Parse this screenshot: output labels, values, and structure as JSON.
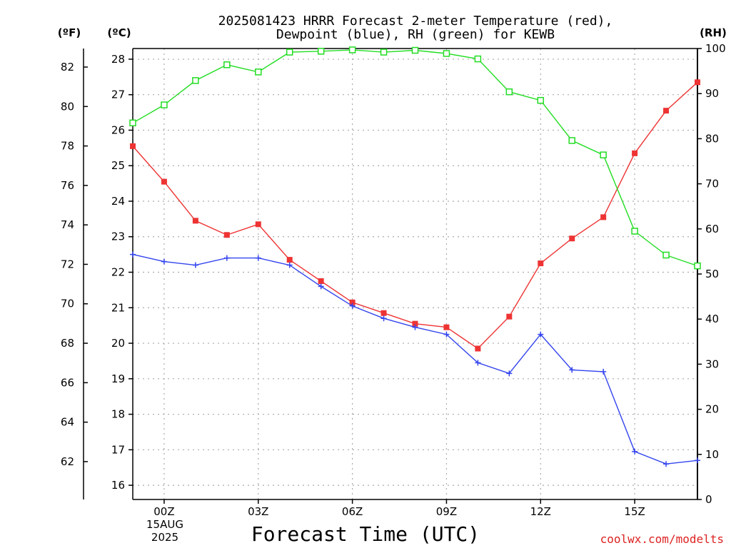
{
  "title_line1": "2025081423 HRRR Forecast 2-meter Temperature (red),",
  "title_line2": "Dewpoint (blue), RH (green) for KEWB",
  "xaxis_title": "Forecast Time (UTC)",
  "credit": "coolwx.com/modelts",
  "unit_f": "(ºF)",
  "unit_c": "(ºC)",
  "unit_rh": "(RH)",
  "date_label_line1": "15AUG",
  "date_label_line2": "2025",
  "colors": {
    "temperature": "#ee3333",
    "dewpoint": "#3344ee",
    "rh": "#22dd22",
    "credit": "#dd2222",
    "grid": "#aaaaaa"
  },
  "chart_data": {
    "type": "line",
    "x_ticks": [
      "00Z",
      "03Z",
      "06Z",
      "09Z",
      "12Z",
      "15Z"
    ],
    "x_hours": [
      -1,
      0,
      1,
      2,
      3,
      4,
      5,
      6,
      7,
      8,
      9,
      10,
      11,
      12,
      13,
      14,
      15,
      16,
      17
    ],
    "xlim": [
      -1,
      17
    ],
    "y_left_c": {
      "ylim": [
        15.6,
        28.3
      ],
      "ticks": [
        16,
        17,
        18,
        19,
        20,
        21,
        22,
        23,
        24,
        25,
        26,
        27,
        28
      ]
    },
    "y_left_f": {
      "ticks": [
        62,
        64,
        66,
        68,
        70,
        72,
        74,
        76,
        78,
        80,
        82
      ]
    },
    "y_right_rh": {
      "ylim": [
        0,
        100
      ],
      "ticks": [
        0,
        10,
        20,
        30,
        40,
        50,
        60,
        70,
        80,
        90,
        100
      ]
    },
    "series": [
      {
        "name": "Temperature",
        "axis": "c",
        "marker": "filled-square",
        "values": [
          25.55,
          24.55,
          23.45,
          23.05,
          23.35,
          22.35,
          21.75,
          21.15,
          20.85,
          20.55,
          20.45,
          19.85,
          20.75,
          22.25,
          22.95,
          23.55,
          25.35,
          26.55,
          27.35
        ]
      },
      {
        "name": "Dewpoint",
        "axis": "c",
        "marker": "plus",
        "values": [
          22.5,
          22.3,
          22.2,
          22.4,
          22.4,
          22.2,
          21.6,
          21.05,
          20.7,
          20.45,
          20.25,
          19.45,
          19.15,
          20.25,
          19.25,
          19.2,
          16.95,
          16.6,
          16.7
        ]
      },
      {
        "name": "RH",
        "axis": "rh",
        "marker": "open-square",
        "values": [
          83.5,
          87.5,
          92.9,
          96.4,
          94.8,
          99.2,
          99.4,
          99.7,
          99.2,
          99.6,
          98.9,
          97.7,
          90.4,
          88.5,
          79.6,
          76.4,
          59.5,
          54.2,
          51.8
        ]
      }
    ]
  }
}
